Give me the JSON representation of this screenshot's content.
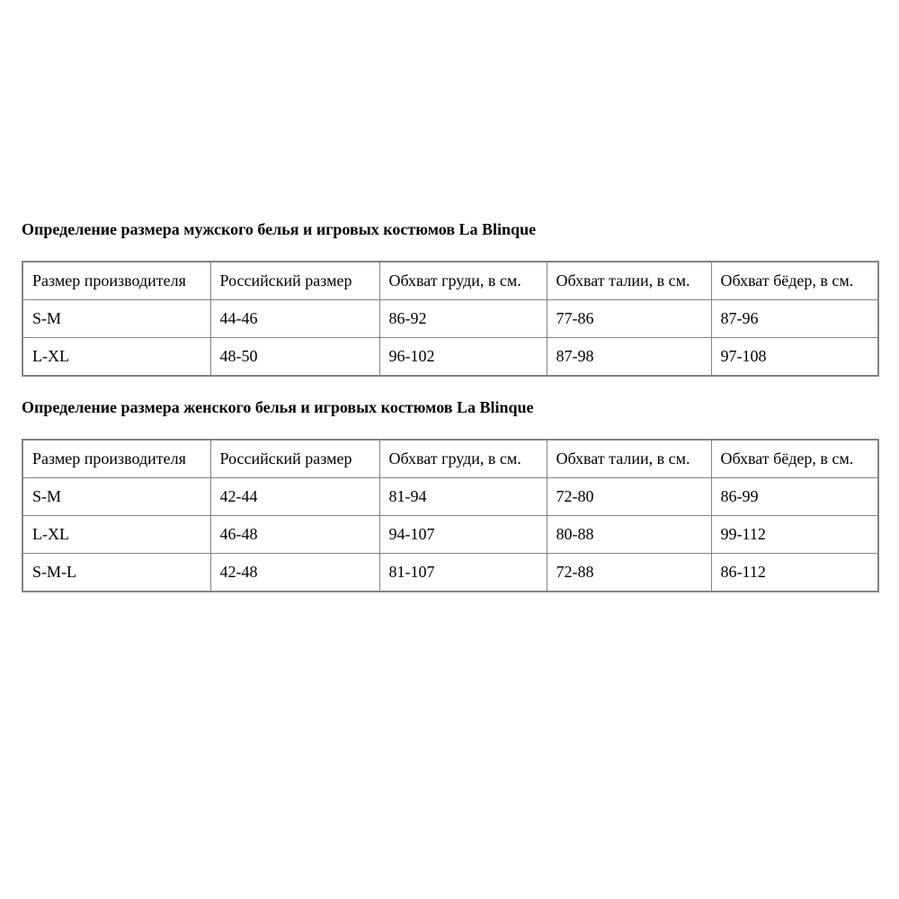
{
  "page": {
    "background_color": "#ffffff",
    "text_color": "#000000",
    "table_border_color": "#828282"
  },
  "sections": [
    {
      "title": "Определение размера мужского белья и игровых костюмов La Blinque",
      "headers": [
        "Размер производителя",
        "Российский размер",
        "Обхват груди, в см.",
        "Обхват талии, в см.",
        "Обхват бёдер, в см."
      ],
      "rows": [
        [
          "S-M",
          "44-46",
          "86-92",
          "77-86",
          "87-96"
        ],
        [
          "L-XL",
          "48-50",
          "96-102",
          "87-98",
          "97-108"
        ]
      ]
    },
    {
      "title": "Определение размера женского белья и игровых костюмов La Blinque",
      "headers": [
        "Размер производителя",
        "Российский размер",
        "Обхват груди, в см.",
        "Обхват талии, в см.",
        "Обхват бёдер, в см."
      ],
      "rows": [
        [
          "S-M",
          "42-44",
          "81-94",
          "72-80",
          "86-99"
        ],
        [
          "L-XL",
          "46-48",
          "94-107",
          "80-88",
          "99-112"
        ],
        [
          "S-M-L",
          "42-48",
          "81-107",
          "72-88",
          "86-112"
        ]
      ]
    }
  ]
}
